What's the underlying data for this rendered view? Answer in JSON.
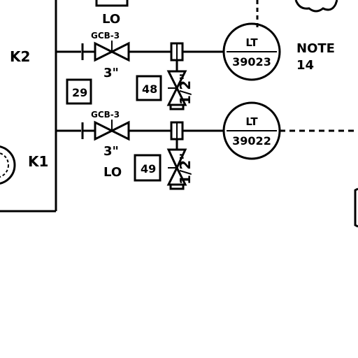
{
  "labels": {
    "top_lo": "LO",
    "k2": "K2",
    "k1": "K1",
    "note_title": "NOTE",
    "note_num": "14"
  },
  "upper_line": {
    "valve_tag": "GCB-3",
    "size": "3\"",
    "box_tag": "29",
    "drain_box": "48",
    "drain_size": "1/2\"",
    "instrument_type": "LT",
    "instrument_num": "39023"
  },
  "lower_line": {
    "valve_tag": "GCB-3",
    "size": "3\"",
    "position": "LO",
    "drain_box": "49",
    "drain_size": "1/2\"",
    "instrument_type": "LT",
    "instrument_num": "39022"
  }
}
